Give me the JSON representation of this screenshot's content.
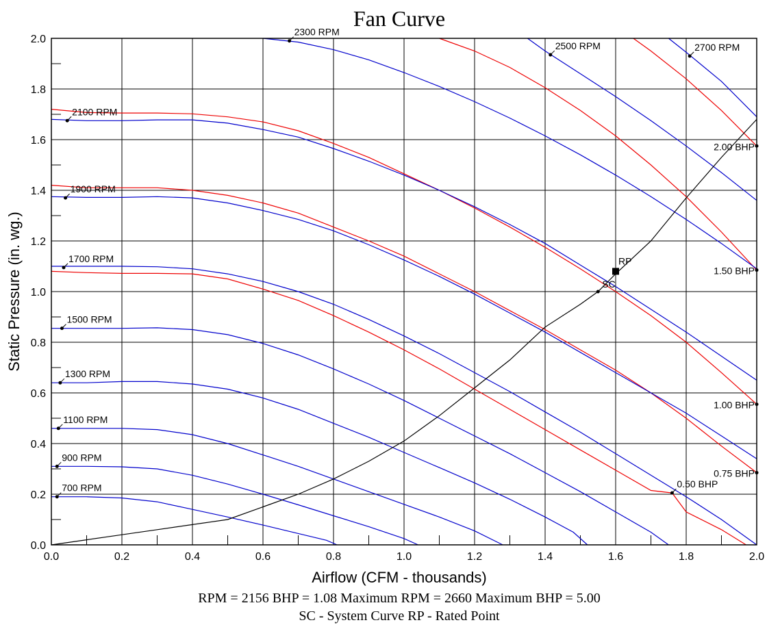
{
  "chart_data": {
    "type": "line",
    "title": "Fan Curve",
    "xlabel": "Airflow (CFM - thousands)",
    "ylabel": "Static Pressure (in. wg.)",
    "xlim": [
      0,
      2.0
    ],
    "ylim": [
      0,
      2.0
    ],
    "x_ticks": [
      "0.0",
      "0.2",
      "0.4",
      "0.6",
      "0.8",
      "1.0",
      "1.2",
      "1.4",
      "1.6",
      "1.8",
      "2.0"
    ],
    "y_ticks": [
      "0.0",
      "0.2",
      "0.4",
      "0.6",
      "0.8",
      "1.0",
      "1.2",
      "1.4",
      "1.6",
      "1.8",
      "2.0"
    ],
    "grid": true,
    "colors": {
      "rpm": "#0000cc",
      "bhp": "#ee0000",
      "system": "#000000",
      "grid": "#000000"
    },
    "rpm_curves": [
      {
        "label": "700 RPM",
        "marker": [
          0.016,
          0.19
        ],
        "points": [
          [
            0,
            0.19
          ],
          [
            0.1,
            0.19
          ],
          [
            0.2,
            0.185
          ],
          [
            0.3,
            0.17
          ],
          [
            0.4,
            0.14
          ],
          [
            0.5,
            0.11
          ],
          [
            0.6,
            0.078
          ],
          [
            0.7,
            0.045
          ],
          [
            0.78,
            0.018
          ],
          [
            0.81,
            0
          ]
        ]
      },
      {
        "label": "900 RPM",
        "marker": [
          0.016,
          0.31
        ],
        "points": [
          [
            0,
            0.31
          ],
          [
            0.1,
            0.31
          ],
          [
            0.2,
            0.308
          ],
          [
            0.3,
            0.3
          ],
          [
            0.4,
            0.275
          ],
          [
            0.5,
            0.24
          ],
          [
            0.6,
            0.2
          ],
          [
            0.7,
            0.158
          ],
          [
            0.8,
            0.115
          ],
          [
            0.9,
            0.072
          ],
          [
            1.0,
            0.025
          ],
          [
            1.04,
            0
          ]
        ]
      },
      {
        "label": "1100 RPM",
        "marker": [
          0.02,
          0.46
        ],
        "points": [
          [
            0,
            0.46
          ],
          [
            0.1,
            0.46
          ],
          [
            0.2,
            0.46
          ],
          [
            0.3,
            0.455
          ],
          [
            0.4,
            0.435
          ],
          [
            0.5,
            0.4
          ],
          [
            0.6,
            0.355
          ],
          [
            0.7,
            0.31
          ],
          [
            0.8,
            0.26
          ],
          [
            0.9,
            0.21
          ],
          [
            1.0,
            0.16
          ],
          [
            1.1,
            0.11
          ],
          [
            1.2,
            0.055
          ],
          [
            1.28,
            0
          ]
        ]
      },
      {
        "label": "1300 RPM",
        "marker": [
          0.025,
          0.64
        ],
        "points": [
          [
            0,
            0.64
          ],
          [
            0.1,
            0.64
          ],
          [
            0.2,
            0.645
          ],
          [
            0.3,
            0.645
          ],
          [
            0.4,
            0.635
          ],
          [
            0.5,
            0.615
          ],
          [
            0.6,
            0.58
          ],
          [
            0.7,
            0.535
          ],
          [
            0.8,
            0.48
          ],
          [
            0.9,
            0.425
          ],
          [
            1.0,
            0.365
          ],
          [
            1.1,
            0.305
          ],
          [
            1.2,
            0.245
          ],
          [
            1.3,
            0.18
          ],
          [
            1.4,
            0.11
          ],
          [
            1.48,
            0.05
          ],
          [
            1.52,
            0
          ]
        ]
      },
      {
        "label": "1500 RPM",
        "marker": [
          0.03,
          0.855
        ],
        "points": [
          [
            0,
            0.855
          ],
          [
            0.1,
            0.855
          ],
          [
            0.2,
            0.855
          ],
          [
            0.3,
            0.857
          ],
          [
            0.4,
            0.85
          ],
          [
            0.5,
            0.83
          ],
          [
            0.6,
            0.795
          ],
          [
            0.7,
            0.75
          ],
          [
            0.8,
            0.695
          ],
          [
            0.9,
            0.635
          ],
          [
            1.0,
            0.57
          ],
          [
            1.1,
            0.5
          ],
          [
            1.2,
            0.43
          ],
          [
            1.3,
            0.36
          ],
          [
            1.4,
            0.285
          ],
          [
            1.5,
            0.21
          ],
          [
            1.6,
            0.13
          ],
          [
            1.7,
            0.05
          ],
          [
            1.75,
            0
          ]
        ]
      },
      {
        "label": "1700 RPM",
        "marker": [
          0.035,
          1.095
        ],
        "points": [
          [
            0,
            1.1
          ],
          [
            0.1,
            1.1
          ],
          [
            0.2,
            1.1
          ],
          [
            0.3,
            1.098
          ],
          [
            0.4,
            1.09
          ],
          [
            0.5,
            1.07
          ],
          [
            0.6,
            1.04
          ],
          [
            0.7,
            1.0
          ],
          [
            0.8,
            0.95
          ],
          [
            0.9,
            0.89
          ],
          [
            1.0,
            0.825
          ],
          [
            1.1,
            0.755
          ],
          [
            1.2,
            0.68
          ],
          [
            1.3,
            0.605
          ],
          [
            1.4,
            0.525
          ],
          [
            1.5,
            0.445
          ],
          [
            1.6,
            0.36
          ],
          [
            1.7,
            0.275
          ],
          [
            1.8,
            0.19
          ],
          [
            1.9,
            0.1
          ],
          [
            1.97,
            0.03
          ],
          [
            2.0,
            0
          ]
        ]
      },
      {
        "label": "1900 RPM",
        "marker": [
          0.04,
          1.37
        ],
        "points": [
          [
            0,
            1.375
          ],
          [
            0.1,
            1.372
          ],
          [
            0.2,
            1.372
          ],
          [
            0.3,
            1.375
          ],
          [
            0.4,
            1.37
          ],
          [
            0.5,
            1.35
          ],
          [
            0.6,
            1.32
          ],
          [
            0.7,
            1.285
          ],
          [
            0.8,
            1.24
          ],
          [
            0.9,
            1.185
          ],
          [
            1.0,
            1.125
          ],
          [
            1.1,
            1.06
          ],
          [
            1.2,
            0.99
          ],
          [
            1.3,
            0.915
          ],
          [
            1.4,
            0.84
          ],
          [
            1.5,
            0.76
          ],
          [
            1.6,
            0.68
          ],
          [
            1.7,
            0.6
          ],
          [
            1.8,
            0.52
          ],
          [
            1.9,
            0.43
          ],
          [
            2.0,
            0.34
          ]
        ]
      },
      {
        "label": "2100 RPM",
        "marker": [
          0.045,
          1.675
        ],
        "points": [
          [
            0,
            1.68
          ],
          [
            0.1,
            1.675
          ],
          [
            0.2,
            1.675
          ],
          [
            0.3,
            1.678
          ],
          [
            0.4,
            1.678
          ],
          [
            0.5,
            1.665
          ],
          [
            0.6,
            1.64
          ],
          [
            0.7,
            1.61
          ],
          [
            0.8,
            1.565
          ],
          [
            0.9,
            1.515
          ],
          [
            1.0,
            1.46
          ],
          [
            1.1,
            1.4
          ],
          [
            1.2,
            1.335
          ],
          [
            1.3,
            1.265
          ],
          [
            1.4,
            1.19
          ],
          [
            1.5,
            1.105
          ],
          [
            1.6,
            1.02
          ],
          [
            1.7,
            0.93
          ],
          [
            1.8,
            0.84
          ],
          [
            1.9,
            0.745
          ],
          [
            2.0,
            0.65
          ]
        ]
      },
      {
        "label": "2300 RPM",
        "marker": [
          0.675,
          1.99
        ],
        "points": [
          [
            0.6,
            2.0
          ],
          [
            0.7,
            1.985
          ],
          [
            0.8,
            1.955
          ],
          [
            0.9,
            1.915
          ],
          [
            1.0,
            1.865
          ],
          [
            1.1,
            1.81
          ],
          [
            1.2,
            1.75
          ],
          [
            1.3,
            1.685
          ],
          [
            1.4,
            1.615
          ],
          [
            1.5,
            1.54
          ],
          [
            1.6,
            1.46
          ],
          [
            1.7,
            1.375
          ],
          [
            1.8,
            1.285
          ],
          [
            1.9,
            1.19
          ],
          [
            2.0,
            1.09
          ]
        ]
      },
      {
        "label": "2500 RPM",
        "marker": [
          1.415,
          1.935
        ],
        "points": [
          [
            1.35,
            2.0
          ],
          [
            1.4,
            1.95
          ],
          [
            1.5,
            1.86
          ],
          [
            1.6,
            1.77
          ],
          [
            1.7,
            1.675
          ],
          [
            1.8,
            1.575
          ],
          [
            1.9,
            1.47
          ],
          [
            2.0,
            1.36
          ]
        ]
      },
      {
        "label": "2700 RPM",
        "marker": [
          1.81,
          1.93
        ],
        "points": [
          [
            1.75,
            2.0
          ],
          [
            1.8,
            1.945
          ],
          [
            1.9,
            1.83
          ],
          [
            2.0,
            1.69
          ]
        ]
      }
    ],
    "bhp_curves": [
      {
        "label": "0.50 BHP",
        "marker": [
          1.76,
          0.205
        ],
        "points": [
          [
            0,
            1.08
          ],
          [
            0.1,
            1.075
          ],
          [
            0.2,
            1.072
          ],
          [
            0.3,
            1.072
          ],
          [
            0.4,
            1.07
          ],
          [
            0.5,
            1.05
          ],
          [
            0.6,
            1.01
          ],
          [
            0.7,
            0.965
          ],
          [
            0.8,
            0.905
          ],
          [
            0.9,
            0.84
          ],
          [
            1.0,
            0.77
          ],
          [
            1.1,
            0.695
          ],
          [
            1.2,
            0.615
          ],
          [
            1.3,
            0.535
          ],
          [
            1.4,
            0.455
          ],
          [
            1.5,
            0.375
          ],
          [
            1.6,
            0.295
          ],
          [
            1.7,
            0.215
          ],
          [
            1.76,
            0.205
          ],
          [
            1.8,
            0.13
          ],
          [
            1.9,
            0.06
          ],
          [
            1.97,
            0
          ]
        ]
      },
      {
        "label": "0.75 BHP",
        "marker": [
          2.0,
          0.285
        ],
        "points": [
          [
            0,
            1.42
          ],
          [
            0.1,
            1.41
          ],
          [
            0.2,
            1.41
          ],
          [
            0.3,
            1.41
          ],
          [
            0.4,
            1.4
          ],
          [
            0.5,
            1.38
          ],
          [
            0.6,
            1.35
          ],
          [
            0.7,
            1.31
          ],
          [
            0.8,
            1.255
          ],
          [
            0.9,
            1.2
          ],
          [
            1.0,
            1.14
          ],
          [
            1.1,
            1.07
          ],
          [
            1.2,
            1.0
          ],
          [
            1.3,
            0.925
          ],
          [
            1.4,
            0.85
          ],
          [
            1.5,
            0.77
          ],
          [
            1.6,
            0.69
          ],
          [
            1.7,
            0.6
          ],
          [
            1.8,
            0.5
          ],
          [
            1.9,
            0.39
          ],
          [
            2.0,
            0.285
          ]
        ]
      },
      {
        "label": "1.00 BHP",
        "marker": [
          2.0,
          0.555
        ],
        "points": [
          [
            0,
            1.72
          ],
          [
            0.1,
            1.707
          ],
          [
            0.2,
            1.705
          ],
          [
            0.3,
            1.705
          ],
          [
            0.4,
            1.702
          ],
          [
            0.5,
            1.69
          ],
          [
            0.6,
            1.67
          ],
          [
            0.7,
            1.635
          ],
          [
            0.8,
            1.585
          ],
          [
            0.9,
            1.53
          ],
          [
            1.0,
            1.465
          ],
          [
            1.1,
            1.4
          ],
          [
            1.2,
            1.33
          ],
          [
            1.3,
            1.255
          ],
          [
            1.4,
            1.175
          ],
          [
            1.5,
            1.09
          ],
          [
            1.6,
            1.0
          ],
          [
            1.7,
            0.905
          ],
          [
            1.8,
            0.8
          ],
          [
            1.9,
            0.68
          ],
          [
            2.0,
            0.555
          ]
        ]
      },
      {
        "label": "1.50 BHP",
        "marker": [
          2.0,
          1.085
        ],
        "points": [
          [
            1.1,
            2.0
          ],
          [
            1.2,
            1.95
          ],
          [
            1.3,
            1.885
          ],
          [
            1.4,
            1.805
          ],
          [
            1.5,
            1.715
          ],
          [
            1.6,
            1.615
          ],
          [
            1.7,
            1.5
          ],
          [
            1.8,
            1.375
          ],
          [
            1.9,
            1.235
          ],
          [
            2.0,
            1.085
          ]
        ]
      },
      {
        "label": "2.00 BHP",
        "marker": [
          2.0,
          1.575
        ],
        "points": [
          [
            1.65,
            2.0
          ],
          [
            1.7,
            1.95
          ],
          [
            1.8,
            1.84
          ],
          [
            1.9,
            1.715
          ],
          [
            2.0,
            1.575
          ]
        ]
      }
    ],
    "system_curve": {
      "points": [
        [
          0,
          0
        ],
        [
          0.1,
          0.02
        ],
        [
          0.2,
          0.04
        ],
        [
          0.3,
          0.06
        ],
        [
          0.4,
          0.08
        ],
        [
          0.5,
          0.1
        ],
        [
          0.6,
          0.15
        ],
        [
          0.7,
          0.2
        ],
        [
          0.8,
          0.26
        ],
        [
          0.9,
          0.33
        ],
        [
          1.0,
          0.41
        ],
        [
          1.1,
          0.51
        ],
        [
          1.2,
          0.62
        ],
        [
          1.3,
          0.73
        ],
        [
          1.4,
          0.86
        ],
        [
          1.5,
          0.95
        ],
        [
          1.55,
          1.0
        ],
        [
          1.6,
          1.07
        ],
        [
          1.7,
          1.2
        ],
        [
          1.8,
          1.37
        ],
        [
          1.9,
          1.53
        ],
        [
          2.0,
          1.68
        ]
      ],
      "marker_label": "SC",
      "marker": [
        1.55,
        1.0
      ]
    },
    "rated_point": {
      "label": "RP",
      "x": 1.6,
      "y": 1.08
    },
    "footer": [
      "RPM = 2156  BHP = 1.08  Maximum RPM = 2660  Maximum BHP = 5.00",
      "SC - System Curve  RP - Rated Point"
    ]
  }
}
